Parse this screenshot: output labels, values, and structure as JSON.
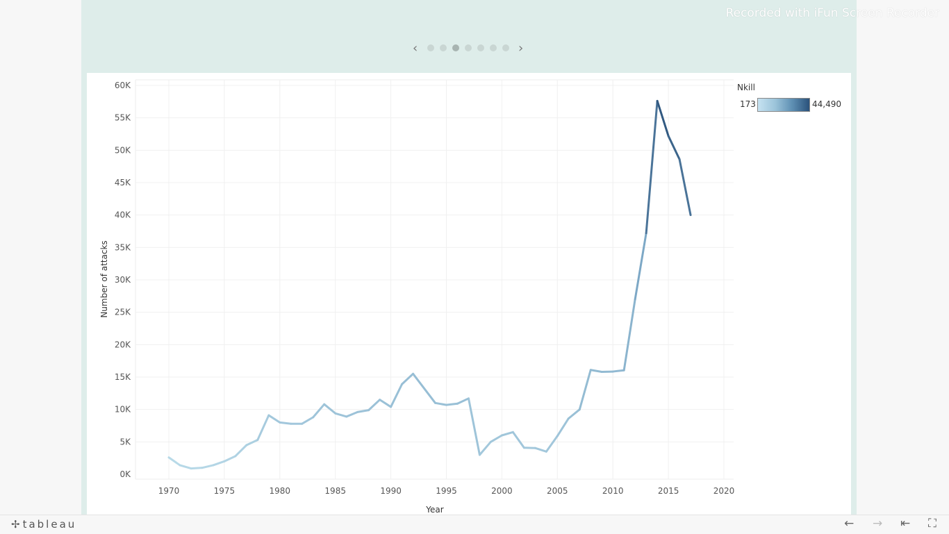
{
  "watermark": "Recorded with iFun Screen Recorder",
  "story_nav": {
    "prev_icon": "‹",
    "next_icon": "›",
    "dot_count": 7,
    "active_index": 2
  },
  "legend": {
    "title": "Nkill",
    "min_label": "173",
    "max_label": "44,490",
    "color_low": "#c6e2f1",
    "color_high": "#2b527b"
  },
  "footer": {
    "brand_icon": "✢",
    "brand": "tableau",
    "back_icon": "←",
    "forward_icon": "→",
    "first_icon": "⇤",
    "fullscreen_icon": "⛶"
  },
  "chart_data": {
    "type": "line",
    "title": "",
    "xlabel": "Year",
    "ylabel": "Number of attacks",
    "xlim": [
      1967,
      2021
    ],
    "ylim": [
      0,
      60000
    ],
    "x_ticks": [
      1970,
      1975,
      1980,
      1985,
      1990,
      1995,
      2000,
      2005,
      2010,
      2015,
      2020
    ],
    "y_ticks": [
      0,
      5000,
      10000,
      15000,
      20000,
      25000,
      30000,
      35000,
      40000,
      45000,
      50000,
      55000,
      60000
    ],
    "y_tick_labels": [
      "0K",
      "5K",
      "10K",
      "15K",
      "20K",
      "25K",
      "30K",
      "35K",
      "40K",
      "45K",
      "50K",
      "55K",
      "60K"
    ],
    "color_encoding": "Nkill",
    "color_range": [
      173,
      44490
    ],
    "x": [
      1970,
      1971,
      1972,
      1973,
      1974,
      1975,
      1976,
      1977,
      1978,
      1979,
      1980,
      1981,
      1982,
      1983,
      1984,
      1985,
      1986,
      1987,
      1988,
      1989,
      1990,
      1991,
      1992,
      1994,
      1995,
      1996,
      1997,
      1998,
      1999,
      2000,
      2001,
      2002,
      2003,
      2004,
      2005,
      2006,
      2007,
      2008,
      2009,
      2010,
      2011,
      2012,
      2013,
      2014,
      2015,
      2016,
      2017
    ],
    "y": [
      2600,
      1400,
      900,
      1000,
      1400,
      2000,
      2800,
      4500,
      5300,
      9100,
      8000,
      7800,
      7800,
      8800,
      10800,
      9400,
      8900,
      9600,
      9900,
      11500,
      10400,
      13900,
      15500,
      11000,
      10700,
      10900,
      11700,
      3000,
      5000,
      6000,
      6500,
      4100,
      4050,
      3500,
      5900,
      8600,
      10000,
      16100,
      15800,
      15850,
      16050,
      27000,
      37200,
      57600,
      52200,
      48600,
      40000
    ],
    "nkill": [
      173,
      250,
      300,
      300,
      400,
      500,
      600,
      900,
      1100,
      2200,
      2400,
      2300,
      2400,
      2700,
      3400,
      3200,
      3100,
      3300,
      3500,
      3900,
      3800,
      4300,
      4800,
      4200,
      4000,
      4100,
      4300,
      2000,
      2400,
      2600,
      2800,
      2300,
      2300,
      2100,
      2700,
      3600,
      4500,
      5600,
      5400,
      5600,
      6000,
      9000,
      14500,
      44490,
      38000,
      34000,
      26000
    ]
  }
}
